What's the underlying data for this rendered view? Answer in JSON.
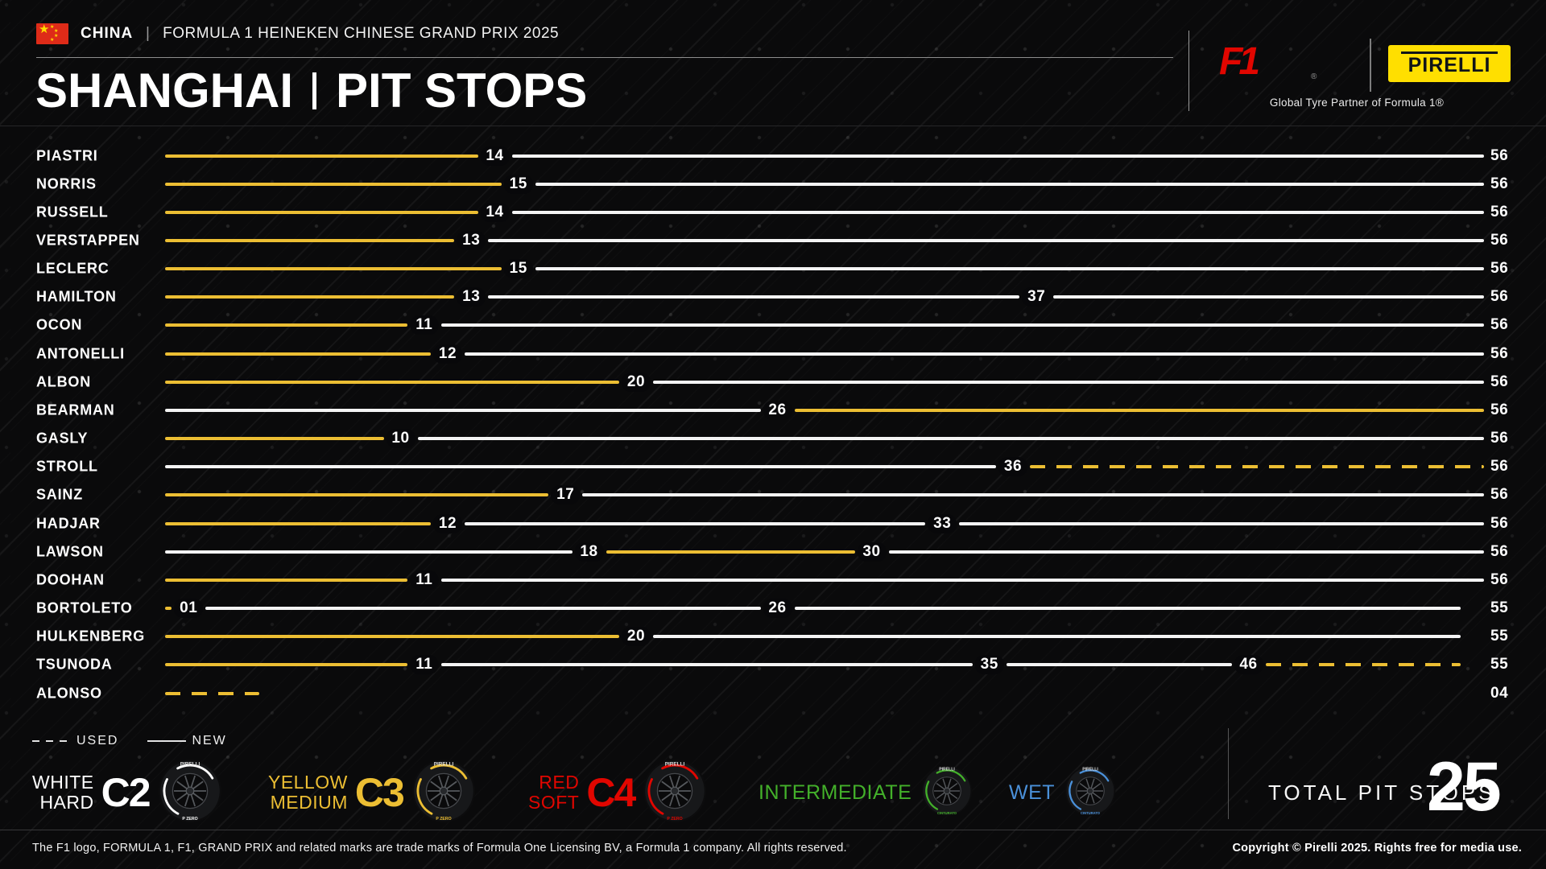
{
  "header": {
    "country": "CHINA",
    "separator": "|",
    "event": "FORMULA 1 HEINEKEN CHINESE GRAND PRIX 2025",
    "title_city": "SHANGHAI",
    "title_section": "PIT STOPS",
    "f1_logo_text": "F1",
    "f1_registered": "®",
    "pirelli_logo_text": "PIRELLI",
    "partner_line": "Global Tyre Partner of Formula 1®"
  },
  "chart_data": {
    "type": "timeline",
    "title": "SHANGHAI | PIT STOPS",
    "axis_total_laps": 56,
    "line_legend": {
      "used": "USED",
      "new": "NEW"
    },
    "compound_colors": {
      "hard": "#f4f4f4",
      "medium": "#ecbe33",
      "soft": "#e10600",
      "intermediate": "#43b02a",
      "wet": "#4a90d9"
    },
    "drivers": [
      {
        "name": "PIASTRI",
        "total": "56",
        "stints": [
          {
            "to": 14,
            "compound": "medium",
            "used": false
          },
          {
            "to": 56,
            "compound": "hard",
            "used": false
          }
        ]
      },
      {
        "name": "NORRIS",
        "total": "56",
        "stints": [
          {
            "to": 15,
            "compound": "medium",
            "used": false
          },
          {
            "to": 56,
            "compound": "hard",
            "used": false
          }
        ]
      },
      {
        "name": "RUSSELL",
        "total": "56",
        "stints": [
          {
            "to": 14,
            "compound": "medium",
            "used": false
          },
          {
            "to": 56,
            "compound": "hard",
            "used": false
          }
        ]
      },
      {
        "name": "VERSTAPPEN",
        "total": "56",
        "stints": [
          {
            "to": 13,
            "compound": "medium",
            "used": false
          },
          {
            "to": 56,
            "compound": "hard",
            "used": false
          }
        ]
      },
      {
        "name": "LECLERC",
        "total": "56",
        "stints": [
          {
            "to": 15,
            "compound": "medium",
            "used": false
          },
          {
            "to": 56,
            "compound": "hard",
            "used": false
          }
        ]
      },
      {
        "name": "HAMILTON",
        "total": "56",
        "stints": [
          {
            "to": 13,
            "compound": "medium",
            "used": false
          },
          {
            "to": 37,
            "compound": "hard",
            "used": false
          },
          {
            "to": 56,
            "compound": "hard",
            "used": false
          }
        ]
      },
      {
        "name": "OCON",
        "total": "56",
        "stints": [
          {
            "to": 11,
            "compound": "medium",
            "used": false
          },
          {
            "to": 56,
            "compound": "hard",
            "used": false
          }
        ]
      },
      {
        "name": "ANTONELLI",
        "total": "56",
        "stints": [
          {
            "to": 12,
            "compound": "medium",
            "used": false
          },
          {
            "to": 56,
            "compound": "hard",
            "used": false
          }
        ]
      },
      {
        "name": "ALBON",
        "total": "56",
        "stints": [
          {
            "to": 20,
            "compound": "medium",
            "used": false
          },
          {
            "to": 56,
            "compound": "hard",
            "used": false
          }
        ]
      },
      {
        "name": "BEARMAN",
        "total": "56",
        "stints": [
          {
            "to": 26,
            "compound": "hard",
            "used": false
          },
          {
            "to": 56,
            "compound": "medium",
            "used": false
          }
        ]
      },
      {
        "name": "GASLY",
        "total": "56",
        "stints": [
          {
            "to": 10,
            "compound": "medium",
            "used": false
          },
          {
            "to": 56,
            "compound": "hard",
            "used": false
          }
        ]
      },
      {
        "name": "STROLL",
        "total": "56",
        "stints": [
          {
            "to": 36,
            "compound": "hard",
            "used": false
          },
          {
            "to": 56,
            "compound": "medium",
            "used": true
          }
        ]
      },
      {
        "name": "SAINZ",
        "total": "56",
        "stints": [
          {
            "to": 17,
            "compound": "medium",
            "used": false
          },
          {
            "to": 56,
            "compound": "hard",
            "used": false
          }
        ]
      },
      {
        "name": "HADJAR",
        "total": "56",
        "stints": [
          {
            "to": 12,
            "compound": "medium",
            "used": false
          },
          {
            "to": 33,
            "compound": "hard",
            "used": false
          },
          {
            "to": 56,
            "compound": "hard",
            "used": false
          }
        ]
      },
      {
        "name": "LAWSON",
        "total": "56",
        "stints": [
          {
            "to": 18,
            "compound": "hard",
            "used": false
          },
          {
            "to": 30,
            "compound": "medium",
            "used": false
          },
          {
            "to": 56,
            "compound": "hard",
            "used": false
          }
        ]
      },
      {
        "name": "DOOHAN",
        "total": "56",
        "stints": [
          {
            "to": 11,
            "compound": "medium",
            "used": false
          },
          {
            "to": 56,
            "compound": "hard",
            "used": false
          }
        ]
      },
      {
        "name": "BORTOLETO",
        "total": "55",
        "stints": [
          {
            "to": 1,
            "compound": "medium",
            "used": true
          },
          {
            "to": 26,
            "compound": "hard",
            "used": false
          },
          {
            "to": 55,
            "compound": "hard",
            "used": false
          }
        ]
      },
      {
        "name": "HULKENBERG",
        "total": "55",
        "stints": [
          {
            "to": 20,
            "compound": "medium",
            "used": false
          },
          {
            "to": 55,
            "compound": "hard",
            "used": false
          }
        ]
      },
      {
        "name": "TSUNODA",
        "total": "55",
        "stints": [
          {
            "to": 11,
            "compound": "medium",
            "used": false
          },
          {
            "to": 35,
            "compound": "hard",
            "used": false
          },
          {
            "to": 46,
            "compound": "hard",
            "used": false
          },
          {
            "to": 55,
            "compound": "medium",
            "used": true
          }
        ]
      },
      {
        "name": "ALONSO",
        "total": "04",
        "stints": [
          {
            "to": 4,
            "compound": "medium",
            "used": true
          }
        ]
      }
    ]
  },
  "tyre_legend": [
    {
      "name_lines": [
        "WHITE",
        "HARD"
      ],
      "code": "C2",
      "color": "#ffffff"
    },
    {
      "name_lines": [
        "YELLOW",
        "MEDIUM"
      ],
      "code": "C3",
      "color": "#ecbe33"
    },
    {
      "name_lines": [
        "RED",
        "SOFT"
      ],
      "code": "C4",
      "color": "#e10600"
    },
    {
      "name_lines": [
        "INTERMEDIATE"
      ],
      "code": "",
      "color": "#43b02a"
    },
    {
      "name_lines": [
        "WET"
      ],
      "code": "",
      "color": "#4a90d9"
    }
  ],
  "summary": {
    "label": "TOTAL PIT STOPS",
    "value": "25"
  },
  "footer": {
    "left": "The F1 logo, FORMULA 1, F1, GRAND PRIX and related marks are trade marks of Formula One Licensing BV, a Formula 1 company. All rights reserved.",
    "right": "Copyright © Pirelli 2025. Rights free for media use."
  }
}
